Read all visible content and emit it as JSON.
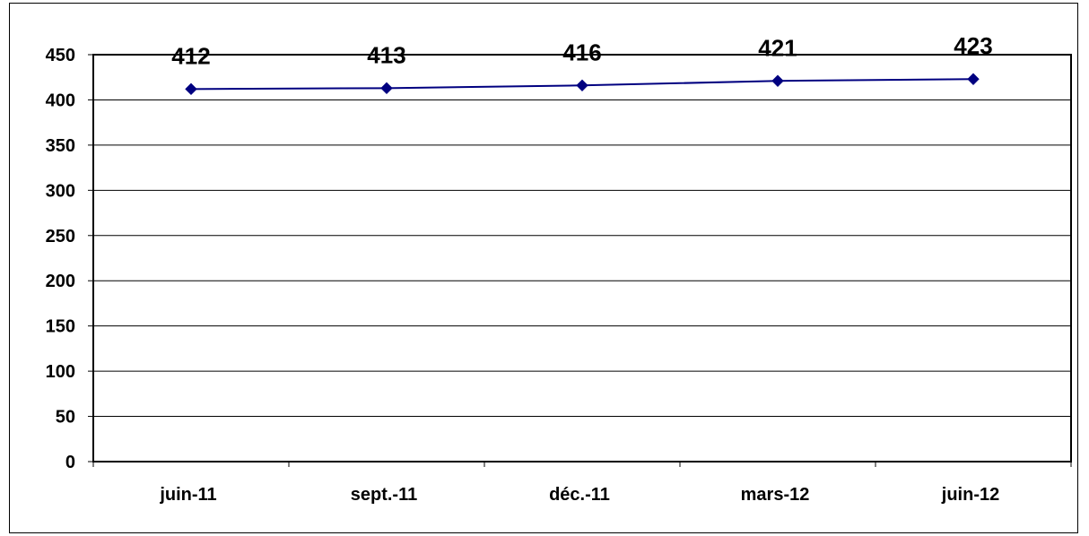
{
  "chart_data": {
    "type": "line",
    "categories": [
      "juin-11",
      "sept.-11",
      "déc.-11",
      "mars-12",
      "juin-12"
    ],
    "series": [
      {
        "values": [
          412,
          413,
          416,
          421,
          423
        ]
      }
    ],
    "data_labels": [
      "412",
      "413",
      "416",
      "421",
      "423"
    ],
    "y_ticks": [
      "0",
      "50",
      "100",
      "150",
      "200",
      "250",
      "300",
      "350",
      "400",
      "450"
    ],
    "ylim": [
      0,
      450
    ],
    "grid": true,
    "legend": "none",
    "line_color": "#000080",
    "marker": "diamond"
  }
}
